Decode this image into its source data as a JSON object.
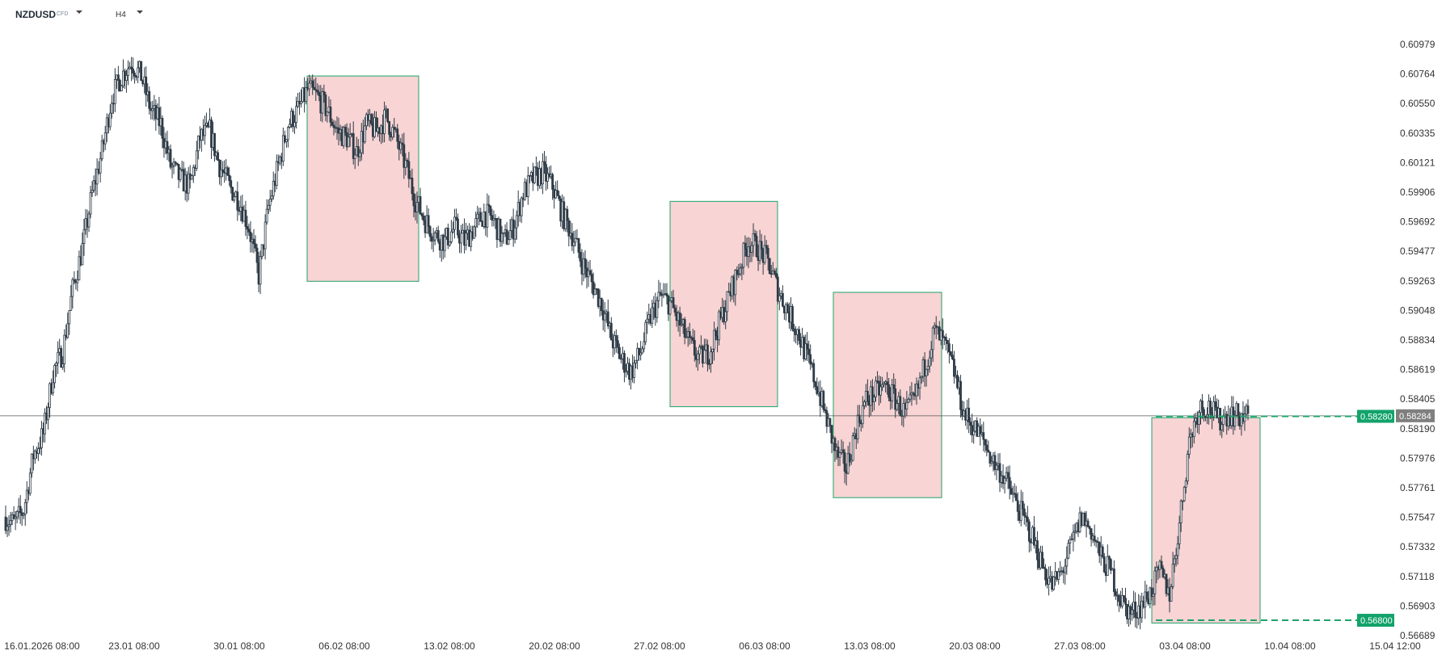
{
  "header": {
    "symbol": "NZDUSD",
    "instrument_type": "CFD",
    "timeframe": "H4"
  },
  "colors": {
    "candle": "#2e3b46",
    "zone_fill": "#f8d4d4",
    "zone_border": "#1fa36a",
    "target_line": "#1fa36a",
    "tag_green": "#12a36b",
    "tag_grey": "#7f7f7f",
    "price_line": "#555555"
  },
  "icons": [
    "chevron-down-icon"
  ],
  "chart_data": {
    "type": "candlestick",
    "title": "",
    "y_axis_ticks": [
      "0.60979",
      "0.60764",
      "0.60550",
      "0.60335",
      "0.60121",
      "0.59906",
      "0.59692",
      "0.59477",
      "0.59263",
      "0.59048",
      "0.58834",
      "0.58619",
      "0.58405",
      "0.58190",
      "0.57976",
      "0.57761",
      "0.57547",
      "0.57332",
      "0.57118",
      "0.56903",
      "0.56689"
    ],
    "ylim": [
      0.56689,
      0.60979
    ],
    "x_axis_ticks": [
      "16.01.2026 08:00",
      "23.01 08:00",
      "30.01 08:00",
      "06.02 08:00",
      "13.02 08:00",
      "20.02 08:00",
      "27.02 08:00",
      "06.03 08:00",
      "13.03 08:00",
      "20.03 08:00",
      "27.03 08:00",
      "03.04 08:00",
      "10.04 08:00",
      "15.04 12:00"
    ],
    "current_price": "0.58284",
    "target_price": "0.58280",
    "target_value": 0.5828,
    "support_price": "0.56800",
    "support_value": 0.568,
    "zones": [
      {
        "from_date": "04.02",
        "to_date": "11.02",
        "high": 0.6075,
        "low": 0.5926
      },
      {
        "from_date": "27.02",
        "to_date": "06.03",
        "high": 0.5984,
        "low": 0.5835
      },
      {
        "from_date": "09.03",
        "to_date": "16.03",
        "high": 0.5918,
        "low": 0.5769
      },
      {
        "from_date": "01.04",
        "to_date": "08.04",
        "high": 0.5827,
        "low": 0.5678
      }
    ],
    "price_path": [
      [
        0.5755,
        0.575
      ],
      [
        0.576,
        0.58
      ],
      [
        0.5815,
        0.586
      ],
      [
        0.5875,
        0.592
      ],
      [
        0.595,
        0.599
      ],
      [
        0.602,
        0.606
      ],
      [
        0.6075,
        0.6085
      ],
      [
        0.6075,
        0.605
      ],
      [
        0.604,
        0.601
      ],
      [
        0.6,
        0.5995
      ],
      [
        0.603,
        0.6035
      ],
      [
        0.601,
        0.5995
      ],
      [
        0.5985,
        0.5965
      ],
      [
        0.593,
        0.598
      ],
      [
        0.601,
        0.604
      ],
      [
        0.605,
        0.6065
      ],
      [
        0.606,
        0.605
      ],
      [
        0.6035,
        0.603
      ],
      [
        0.602,
        0.604
      ],
      [
        0.6035,
        0.6045
      ],
      [
        0.603,
        0.601
      ],
      [
        0.5985,
        0.597
      ],
      [
        0.596,
        0.5955
      ],
      [
        0.5965,
        0.5955
      ],
      [
        0.5965,
        0.5975
      ],
      [
        0.597,
        0.5955
      ],
      [
        0.5965,
        0.599
      ],
      [
        0.6,
        0.6005
      ],
      [
        0.5995,
        0.5975
      ],
      [
        0.596,
        0.594
      ],
      [
        0.5925,
        0.591
      ],
      [
        0.5885,
        0.587
      ],
      [
        0.586,
        0.5875
      ],
      [
        0.59,
        0.5915
      ],
      [
        0.591,
        0.5895
      ],
      [
        0.588,
        0.587
      ],
      [
        0.5875,
        0.5895
      ],
      [
        0.5915,
        0.5935
      ],
      [
        0.5955,
        0.595
      ],
      [
        0.594,
        0.592
      ],
      [
        0.5905,
        0.589
      ],
      [
        0.587,
        0.585
      ],
      [
        0.5825,
        0.58
      ],
      [
        0.579,
        0.582
      ],
      [
        0.584,
        0.5845
      ],
      [
        0.585,
        0.584
      ],
      [
        0.583,
        0.584
      ],
      [
        0.5865,
        0.589
      ],
      [
        0.588,
        0.586
      ],
      [
        0.583,
        0.582
      ],
      [
        0.581,
        0.5795
      ],
      [
        0.5785,
        0.577
      ],
      [
        0.5755,
        0.574
      ],
      [
        0.572,
        0.5705
      ],
      [
        0.5715,
        0.5735
      ],
      [
        0.5755,
        0.5745
      ],
      [
        0.5725,
        0.5715
      ],
      [
        0.5695,
        0.5685
      ],
      [
        0.569,
        0.57
      ],
      [
        0.5715,
        0.57
      ],
      [
        0.575,
        0.581
      ],
      [
        0.5835,
        0.5835
      ],
      [
        0.5825,
        0.583
      ],
      [
        0.5828,
        0.5828
      ]
    ]
  }
}
